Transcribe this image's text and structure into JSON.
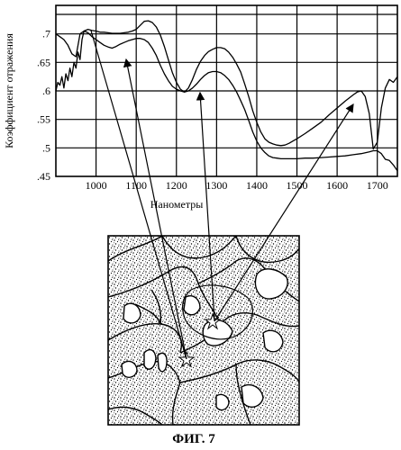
{
  "chart_data": {
    "type": "line",
    "ylabel": "Коэффициент отражения",
    "xlabel": "Нанометры",
    "xlim": [
      900,
      1750
    ],
    "ylim": [
      0.45,
      0.75
    ],
    "xticks": [
      "1000",
      "1100",
      "1200",
      "1300",
      "1400",
      "1500",
      "1600",
      "1700"
    ],
    "yticks": [
      ".7",
      ".65",
      ".6",
      ".55",
      ".5",
      ".45"
    ],
    "grid": true,
    "series": [
      {
        "x": [
          900,
          910,
          920,
          930,
          940,
          950,
          960,
          970,
          980,
          990,
          1000,
          1010,
          1020,
          1030,
          1040,
          1050,
          1060,
          1070,
          1080,
          1090,
          1100,
          1110,
          1120,
          1130,
          1140,
          1150,
          1160,
          1170,
          1180,
          1190,
          1200,
          1210,
          1220,
          1230,
          1240,
          1250,
          1260,
          1270,
          1280,
          1290,
          1300,
          1310,
          1320,
          1330,
          1340,
          1350,
          1360,
          1370,
          1380,
          1390,
          1400,
          1410,
          1420,
          1430,
          1440,
          1450,
          1460,
          1470,
          1480,
          1490,
          1500,
          1520,
          1540,
          1560,
          1580,
          1600,
          1620,
          1640,
          1650,
          1660,
          1670,
          1680,
          1690,
          1700,
          1710,
          1720,
          1730,
          1740,
          1750
        ],
        "y": [
          0.7,
          0.695,
          0.69,
          0.68,
          0.665,
          0.66,
          0.7,
          0.705,
          0.708,
          0.706,
          0.705,
          0.703,
          0.703,
          0.702,
          0.701,
          0.701,
          0.701,
          0.702,
          0.703,
          0.705,
          0.708,
          0.715,
          0.722,
          0.723,
          0.72,
          0.712,
          0.698,
          0.678,
          0.655,
          0.632,
          0.615,
          0.603,
          0.598,
          0.605,
          0.62,
          0.638,
          0.652,
          0.662,
          0.669,
          0.673,
          0.676,
          0.676,
          0.674,
          0.668,
          0.659,
          0.647,
          0.633,
          0.612,
          0.59,
          0.565,
          0.545,
          0.528,
          0.516,
          0.51,
          0.507,
          0.505,
          0.504,
          0.505,
          0.508,
          0.512,
          0.516,
          0.525,
          0.535,
          0.545,
          0.558,
          0.57,
          0.582,
          0.593,
          0.598,
          0.6,
          0.59,
          0.56,
          0.498,
          0.51,
          0.57,
          0.605,
          0.62,
          0.615,
          0.625
        ]
      },
      {
        "x": [
          900,
          905,
          910,
          915,
          920,
          925,
          930,
          935,
          940,
          945,
          950,
          955,
          960,
          965,
          970,
          980,
          990,
          1000,
          1010,
          1020,
          1030,
          1040,
          1050,
          1060,
          1070,
          1080,
          1090,
          1100,
          1110,
          1120,
          1130,
          1140,
          1150,
          1160,
          1170,
          1180,
          1190,
          1200,
          1210,
          1220,
          1230,
          1240,
          1250,
          1260,
          1270,
          1280,
          1290,
          1300,
          1310,
          1320,
          1330,
          1340,
          1350,
          1360,
          1370,
          1380,
          1390,
          1400,
          1410,
          1420,
          1430,
          1440,
          1450,
          1460,
          1470,
          1480,
          1500,
          1520,
          1540,
          1560,
          1580,
          1600,
          1620,
          1640,
          1660,
          1680,
          1690,
          1700,
          1710,
          1720,
          1730,
          1740,
          1750
        ],
        "y": [
          0.6,
          0.615,
          0.61,
          0.625,
          0.605,
          0.63,
          0.618,
          0.64,
          0.625,
          0.65,
          0.64,
          0.668,
          0.655,
          0.69,
          0.705,
          0.702,
          0.695,
          0.69,
          0.685,
          0.68,
          0.677,
          0.675,
          0.678,
          0.682,
          0.685,
          0.688,
          0.69,
          0.692,
          0.692,
          0.69,
          0.685,
          0.675,
          0.662,
          0.645,
          0.63,
          0.618,
          0.608,
          0.603,
          0.6,
          0.598,
          0.6,
          0.605,
          0.612,
          0.62,
          0.627,
          0.632,
          0.634,
          0.634,
          0.632,
          0.627,
          0.62,
          0.61,
          0.598,
          0.583,
          0.567,
          0.548,
          0.528,
          0.512,
          0.5,
          0.492,
          0.486,
          0.483,
          0.482,
          0.481,
          0.481,
          0.481,
          0.481,
          0.482,
          0.482,
          0.483,
          0.484,
          0.485,
          0.486,
          0.488,
          0.49,
          0.493,
          0.495,
          0.495,
          0.49,
          0.48,
          0.478,
          0.47,
          0.46
        ]
      }
    ]
  },
  "caption": "ФИГ. 7"
}
